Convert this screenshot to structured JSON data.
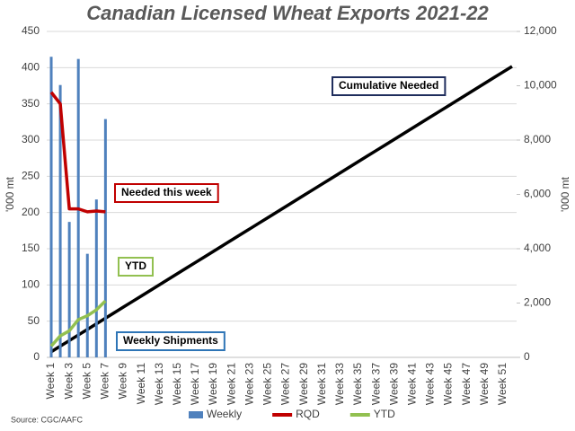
{
  "chart_data": {
    "type": "combo",
    "title": "Canadian Licensed Wheat Exports 2021-22",
    "ylabel": "'000 mt",
    "y2label": "'000 mt",
    "source": "Source: CGC/AAFC",
    "categories": [
      "Week 1",
      null,
      "Week 3",
      null,
      "Week 5",
      null,
      "Week 7",
      null,
      "Week 9",
      null,
      "Week 11",
      null,
      "Week 13",
      null,
      "Week 15",
      null,
      "Week 17",
      null,
      "Week 19",
      null,
      "Week 21",
      null,
      "Week 23",
      null,
      "Week 25",
      null,
      "Week 27",
      null,
      "Week 29",
      null,
      "Week 31",
      null,
      "Week 33",
      null,
      "Week 35",
      null,
      "Week 37",
      null,
      "Week 39",
      null,
      "Week 41",
      null,
      "Week 43",
      null,
      "Week 45",
      null,
      "Week 47",
      null,
      "Week 49",
      null,
      "Week 51",
      null
    ],
    "ylim": [
      0,
      450
    ],
    "yticks": [
      0,
      50,
      100,
      150,
      200,
      250,
      300,
      350,
      400,
      450
    ],
    "y2lim": [
      0,
      12000
    ],
    "y2ticks": [
      0,
      {
        "value": 2000,
        "label": "2,000"
      },
      {
        "value": 4000,
        "label": "4,000"
      },
      {
        "value": 6000,
        "label": "6,000"
      },
      {
        "value": 8000,
        "label": "8,000"
      },
      {
        "value": 10000,
        "label": "10,000"
      },
      {
        "value": 12000,
        "label": "12,000"
      }
    ],
    "grid": true,
    "legend": "bottom",
    "series": [
      {
        "name": "Weekly",
        "kind": "bar",
        "color": "#4f81bd",
        "values": [
          415,
          376,
          187,
          412,
          143,
          218,
          329,
          null,
          null,
          null,
          null,
          null,
          null,
          null,
          null,
          null,
          null,
          null,
          null,
          null,
          null,
          null,
          null,
          null,
          null,
          null,
          null,
          null,
          null,
          null,
          null,
          null,
          null,
          null,
          null,
          null,
          null,
          null,
          null,
          null,
          null,
          null,
          null,
          null,
          null,
          null,
          null,
          null,
          null,
          null,
          null,
          null
        ]
      },
      {
        "name": "RQD",
        "kind": "line",
        "color": "#c00000",
        "values": [
          366,
          350,
          205,
          205,
          201,
          202,
          201,
          null,
          null,
          null,
          null,
          null,
          null,
          null,
          null,
          null,
          null,
          null,
          null,
          null,
          null,
          null,
          null,
          null,
          null,
          null,
          null,
          null,
          null,
          null,
          null,
          null,
          null,
          null,
          null,
          null,
          null,
          null,
          null,
          null,
          null,
          null,
          null,
          null,
          null,
          null,
          null,
          null,
          null,
          null,
          null,
          null
        ]
      },
      {
        "name": "YTD",
        "kind": "line",
        "axis": "y2",
        "color": "#92c050",
        "values": [
          415,
          791,
          978,
          1390,
          1533,
          1751,
          2080,
          null,
          null,
          null,
          null,
          null,
          null,
          null,
          null,
          null,
          null,
          null,
          null,
          null,
          null,
          null,
          null,
          null,
          null,
          null,
          null,
          null,
          null,
          null,
          null,
          null,
          null,
          null,
          null,
          null,
          null,
          null,
          null,
          null,
          null,
          null,
          null,
          null,
          null,
          null,
          null,
          null,
          null,
          null,
          null,
          null
        ]
      }
    ],
    "cumulative": {
      "label": "Cumulative Needed",
      "axis": "y2",
      "color": "#000000",
      "values": [
        206,
        412,
        618,
        824,
        1030,
        1236,
        1442,
        1648,
        1854,
        2060,
        2266,
        2472,
        2678,
        2884,
        3090,
        3296,
        3502,
        3708,
        3914,
        4120,
        4326,
        4532,
        4738,
        4944,
        5150,
        5356,
        5562,
        5768,
        5974,
        6180,
        6386,
        6592,
        6798,
        7004,
        7210,
        7416,
        7622,
        7828,
        8034,
        8240,
        8446,
        8652,
        8858,
        9064,
        9270,
        9476,
        9682,
        9888,
        10094,
        10300,
        10506,
        10712
      ]
    },
    "annotations": [
      {
        "text": "Needed this week",
        "color": "#c00000"
      },
      {
        "text": "YTD",
        "color": "#92c050"
      },
      {
        "text": "Weekly Shipments",
        "color": "#2e75b6"
      },
      {
        "text": "Cumulative Needed",
        "color": "#1f2d5c"
      }
    ]
  }
}
